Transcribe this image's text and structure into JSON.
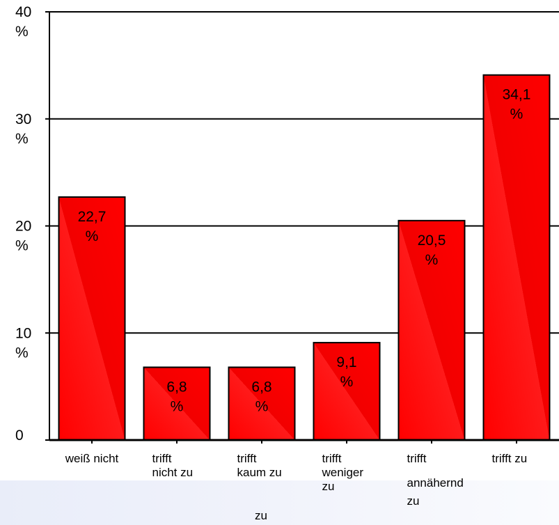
{
  "chart_data": {
    "type": "bar",
    "categories": [
      [
        "weiß nicht"
      ],
      [
        "trifft",
        "nicht zu"
      ],
      [
        "trifft",
        "kaum zu",
        "zu"
      ],
      [
        "trifft",
        "weniger",
        "zu"
      ],
      [
        "trifft",
        "annähernd",
        "zu"
      ],
      [
        "trifft zu"
      ]
    ],
    "values": [
      22.7,
      6.8,
      6.8,
      9.1,
      20.5,
      34.1
    ],
    "value_labels": [
      [
        "22,7",
        "%"
      ],
      [
        "6,8",
        "%"
      ],
      [
        "6,8",
        "%"
      ],
      [
        "9,1",
        "%"
      ],
      [
        "20,5",
        "%"
      ],
      [
        "34,1",
        "%"
      ]
    ],
    "y_ticks": [
      {
        "value": 0,
        "label": [
          "0"
        ]
      },
      {
        "value": 10,
        "label": [
          "10",
          "%"
        ]
      },
      {
        "value": 20,
        "label": [
          "20",
          "%"
        ]
      },
      {
        "value": 30,
        "label": [
          "30",
          "%"
        ]
      },
      {
        "value": 40,
        "label": [
          "40",
          "%"
        ]
      }
    ],
    "ylim": [
      0,
      40
    ],
    "title": "",
    "xlabel": "",
    "ylabel": "",
    "grid": true,
    "legend": "none",
    "bar_color": "#ff0000",
    "bar_edge_color": "#000000",
    "gridline_color": "#000000"
  }
}
